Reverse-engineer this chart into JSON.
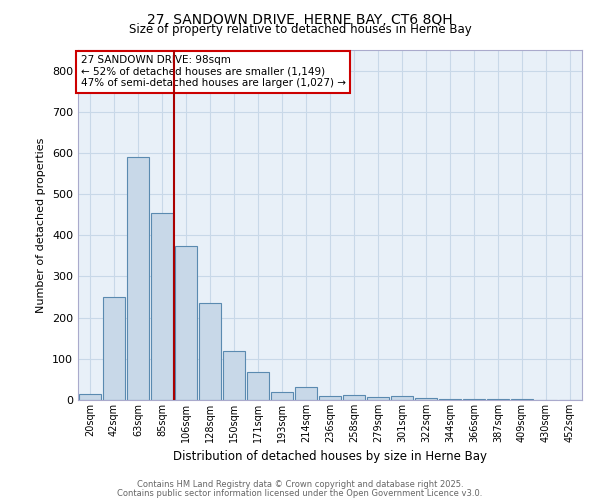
{
  "title1": "27, SANDOWN DRIVE, HERNE BAY, CT6 8QH",
  "title2": "Size of property relative to detached houses in Herne Bay",
  "xlabel": "Distribution of detached houses by size in Herne Bay",
  "ylabel": "Number of detached properties",
  "bin_labels": [
    "20sqm",
    "42sqm",
    "63sqm",
    "85sqm",
    "106sqm",
    "128sqm",
    "150sqm",
    "171sqm",
    "193sqm",
    "214sqm",
    "236sqm",
    "258sqm",
    "279sqm",
    "301sqm",
    "322sqm",
    "344sqm",
    "366sqm",
    "387sqm",
    "409sqm",
    "430sqm",
    "452sqm"
  ],
  "bar_heights": [
    15,
    250,
    590,
    455,
    375,
    235,
    120,
    68,
    20,
    32,
    10,
    12,
    8,
    10,
    5,
    3,
    3,
    3,
    2,
    1,
    1
  ],
  "bar_color": "#c8d8e8",
  "bar_edge_color": "#5a8ab0",
  "vline_color": "#aa0000",
  "vline_x": 3.5,
  "annotation_text": "27 SANDOWN DRIVE: 98sqm\n← 52% of detached houses are smaller (1,149)\n47% of semi-detached houses are larger (1,027) →",
  "annotation_box_color": "#ffffff",
  "annotation_box_edge": "#cc0000",
  "grid_color": "#c8d8e8",
  "background_color": "#e8f0f8",
  "footer1": "Contains HM Land Registry data © Crown copyright and database right 2025.",
  "footer2": "Contains public sector information licensed under the Open Government Licence v3.0.",
  "ylim": [
    0,
    850
  ],
  "yticks": [
    0,
    100,
    200,
    300,
    400,
    500,
    600,
    700,
    800
  ]
}
